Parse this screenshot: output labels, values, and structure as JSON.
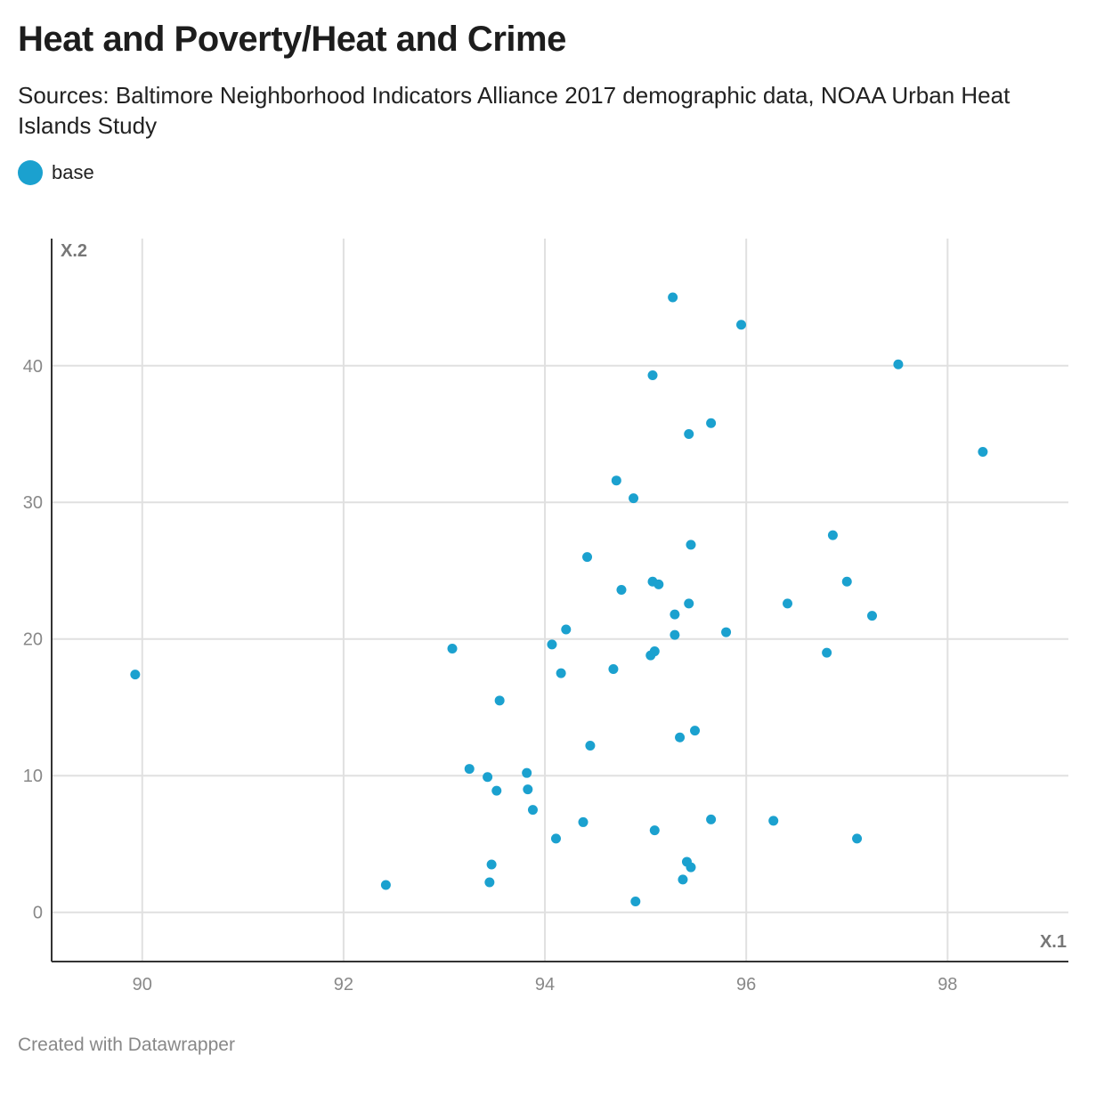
{
  "header": {
    "title": "Heat and Poverty/Heat and Crime",
    "subtitle": "Sources: Baltimore Neighborhood Indicators Alliance 2017 demographic data, NOAA Urban Heat Islands Study"
  },
  "legend": {
    "label": "base",
    "color": "#1ba1cf"
  },
  "footer": {
    "credit": "Created with Datawrapper"
  },
  "chart_data": {
    "type": "scatter",
    "title": "Heat and Poverty/Heat and Crime",
    "xlabel": "X.1",
    "ylabel": "X.2",
    "xlim": [
      89.1,
      99.2
    ],
    "ylim": [
      -3.6,
      49.3
    ],
    "xticks": [
      90,
      92,
      94,
      96,
      98
    ],
    "yticks": [
      0,
      10,
      20,
      30,
      40
    ],
    "grid": true,
    "legend_position": "top-left",
    "series": [
      {
        "name": "base",
        "color": "#1ba1cf",
        "points": [
          [
            89.93,
            17.4
          ],
          [
            92.42,
            2.0
          ],
          [
            93.08,
            19.3
          ],
          [
            93.25,
            10.5
          ],
          [
            93.43,
            9.9
          ],
          [
            93.45,
            2.2
          ],
          [
            93.47,
            3.5
          ],
          [
            93.52,
            8.9
          ],
          [
            93.55,
            15.5
          ],
          [
            93.82,
            10.2
          ],
          [
            93.83,
            9.0
          ],
          [
            93.88,
            7.5
          ],
          [
            94.07,
            19.6
          ],
          [
            94.11,
            5.4
          ],
          [
            94.16,
            17.5
          ],
          [
            94.21,
            20.7
          ],
          [
            94.38,
            6.6
          ],
          [
            94.42,
            26.0
          ],
          [
            94.45,
            12.2
          ],
          [
            94.68,
            17.8
          ],
          [
            94.71,
            31.6
          ],
          [
            94.76,
            23.6
          ],
          [
            94.88,
            30.3
          ],
          [
            94.9,
            0.8
          ],
          [
            95.05,
            18.8
          ],
          [
            95.07,
            39.3
          ],
          [
            95.07,
            24.2
          ],
          [
            95.09,
            19.1
          ],
          [
            95.09,
            6.0
          ],
          [
            95.13,
            24.0
          ],
          [
            95.27,
            45.0
          ],
          [
            95.29,
            21.8
          ],
          [
            95.29,
            20.3
          ],
          [
            95.34,
            12.8
          ],
          [
            95.37,
            2.4
          ],
          [
            95.41,
            3.7
          ],
          [
            95.43,
            35.0
          ],
          [
            95.43,
            22.6
          ],
          [
            95.45,
            26.9
          ],
          [
            95.45,
            3.3
          ],
          [
            95.49,
            13.3
          ],
          [
            95.65,
            35.8
          ],
          [
            95.65,
            6.8
          ],
          [
            95.8,
            20.5
          ],
          [
            95.95,
            43.0
          ],
          [
            96.27,
            6.7
          ],
          [
            96.41,
            22.6
          ],
          [
            96.8,
            19.0
          ],
          [
            96.86,
            27.6
          ],
          [
            97.0,
            24.2
          ],
          [
            97.1,
            5.4
          ],
          [
            97.25,
            21.7
          ],
          [
            97.51,
            40.1
          ],
          [
            98.35,
            33.7
          ]
        ]
      }
    ]
  }
}
